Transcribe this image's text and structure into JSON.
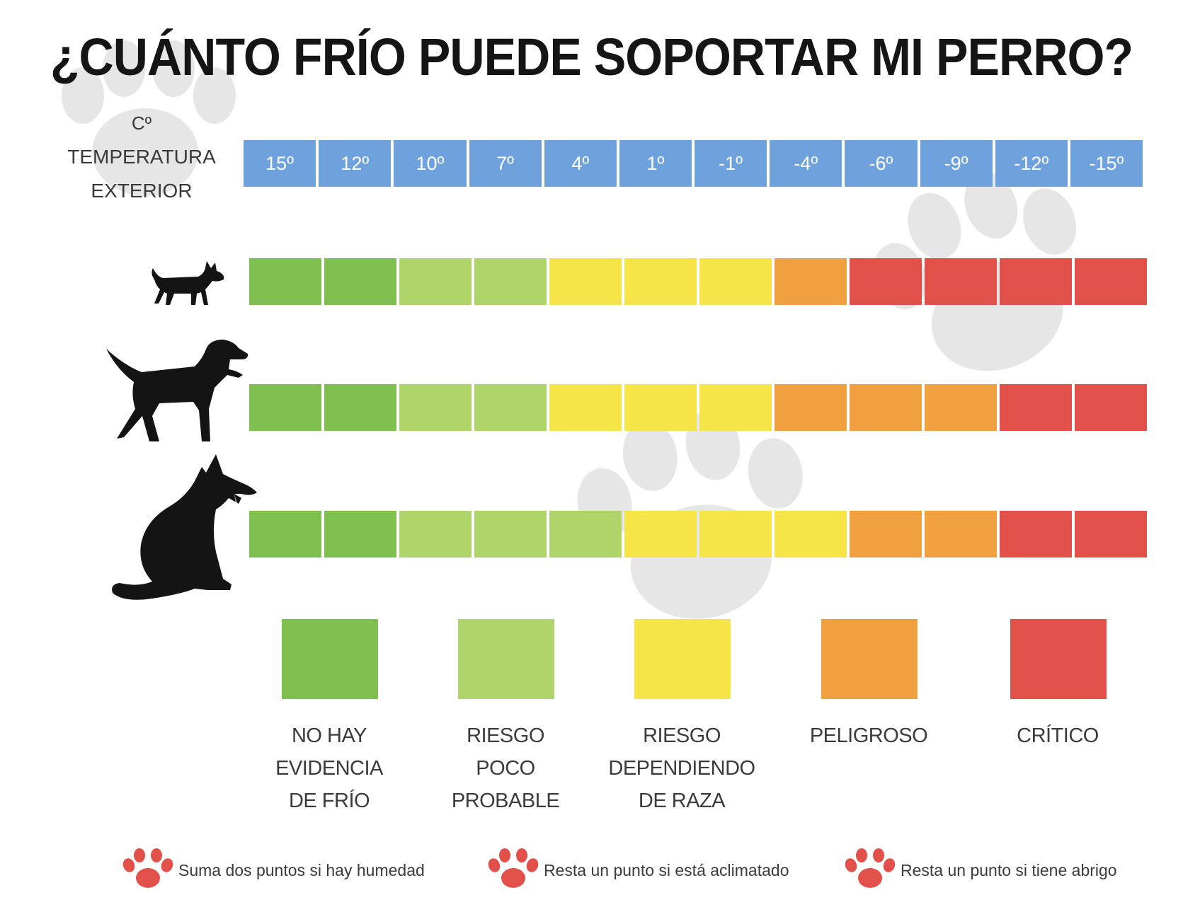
{
  "title": "¿CUÁNTO FRÍO PUEDE SOPORTAR MI PERRO?",
  "unit": "Cº",
  "temperature_label_line1": "TEMPERATURA",
  "temperature_label_line2": "EXTERIOR",
  "temperatures": [
    "15º",
    "12º",
    "10º",
    "7º",
    "4º",
    "1º",
    "-1º",
    "-4º",
    "-6º",
    "-9º",
    "-12º",
    "-15º"
  ],
  "colors": {
    "header": "#6fa2dc",
    "no_hay": "#7ebf4f",
    "poco": "#afd46a",
    "depende": "#f6e549",
    "peligroso": "#f0a03e",
    "critico": "#e2504a"
  },
  "dog_sizes": [
    {
      "icon": "small-dog-icon",
      "levels": [
        "no_hay",
        "no_hay",
        "poco",
        "poco",
        "depende",
        "depende",
        "depende",
        "peligroso",
        "critico",
        "critico",
        "critico",
        "critico"
      ]
    },
    {
      "icon": "medium-dog-icon",
      "levels": [
        "no_hay",
        "no_hay",
        "poco",
        "poco",
        "depende",
        "depende",
        "depende",
        "peligroso",
        "peligroso",
        "peligroso",
        "critico",
        "critico"
      ]
    },
    {
      "icon": "large-dog-icon",
      "levels": [
        "no_hay",
        "no_hay",
        "poco",
        "poco",
        "poco",
        "depende",
        "depende",
        "depende",
        "peligroso",
        "peligroso",
        "critico",
        "critico"
      ]
    }
  ],
  "legend": [
    {
      "key": "no_hay",
      "line1": "NO HAY",
      "line2": "EVIDENCIA",
      "line3": "DE FRÍO"
    },
    {
      "key": "poco",
      "line1": "RIESGO",
      "line2": "POCO",
      "line3": "PROBABLE"
    },
    {
      "key": "depende",
      "line1": "RIESGO",
      "line2": "DEPENDIENDO",
      "line3": "DE RAZA"
    },
    {
      "key": "peligroso",
      "line1": "PELIGROSO",
      "line2": "",
      "line3": ""
    },
    {
      "key": "critico",
      "line1": "CRÍTICO",
      "line2": "",
      "line3": ""
    }
  ],
  "notes": [
    {
      "text": "Suma dos puntos si hay humedad",
      "icon": "paw-icon"
    },
    {
      "text": "Resta un punto si está aclimatado",
      "icon": "paw-icon"
    },
    {
      "text": "Resta un punto si tiene abrigo",
      "icon": "paw-icon"
    }
  ]
}
